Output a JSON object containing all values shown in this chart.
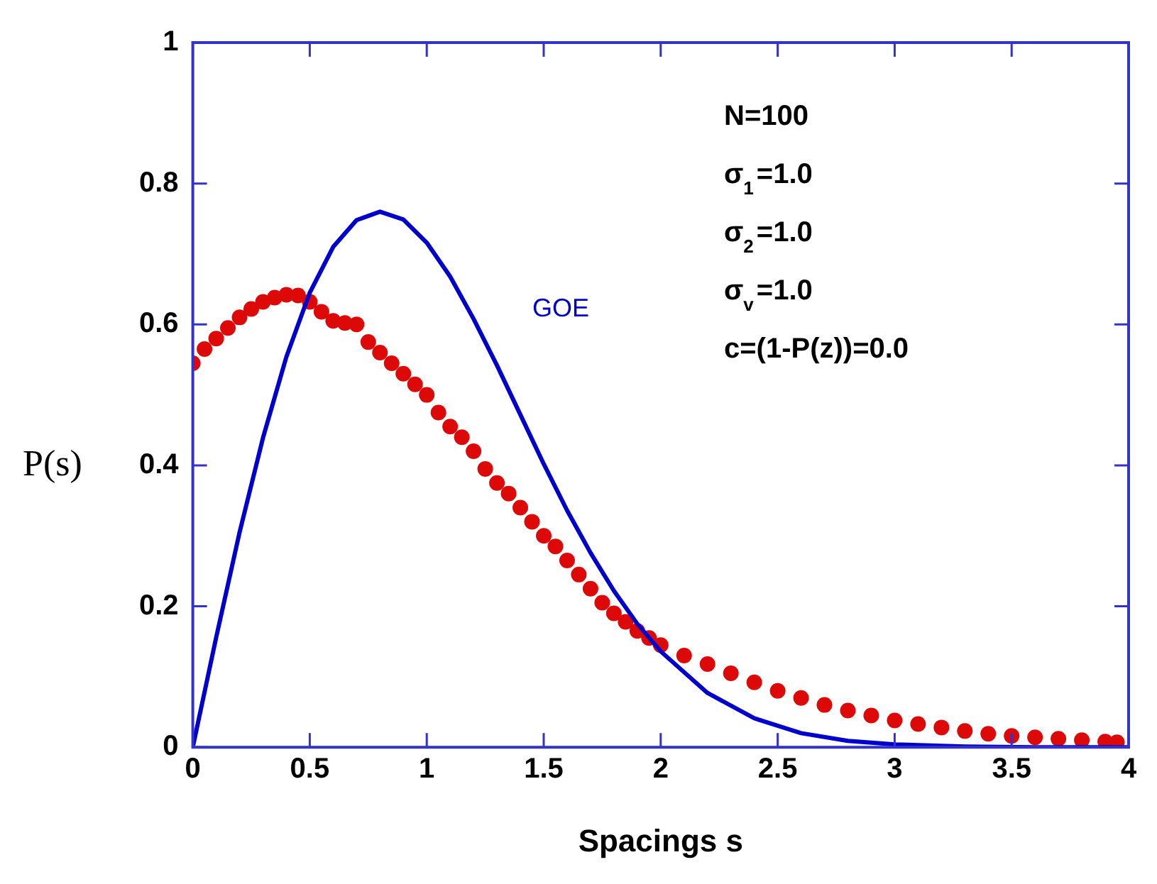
{
  "chart_data": {
    "type": "scatter",
    "xlabel": "Spacings s",
    "ylabel": "P(s)",
    "xlim": [
      0,
      4
    ],
    "ylim": [
      0,
      1
    ],
    "xticks": [
      0,
      0.5,
      1,
      1.5,
      2,
      2.5,
      3,
      3.5,
      4
    ],
    "yticks": [
      0,
      0.2,
      0.4,
      0.6,
      0.8,
      1
    ],
    "grid": false,
    "legend": false,
    "marker": "circle",
    "annotations": [
      "GOE",
      "N=100",
      "σ$_{1}$=1.0",
      "σ$_{2}$=1.0",
      "σ$_{v}$=1.0",
      "c=(1-P(z))=0.0"
    ],
    "series": [
      {
        "color": "#dd0808",
        "x": [
          0,
          0.05,
          0.1,
          0.15,
          0.2,
          0.25,
          0.3,
          0.35,
          0.4,
          0.45,
          0.5,
          0.55,
          0.6,
          0.65,
          0.7,
          0.75,
          0.8,
          0.85,
          0.9,
          0.95,
          1.0,
          1.05,
          1.1,
          1.15,
          1.2,
          1.25,
          1.3,
          1.35,
          1.4,
          1.45,
          1.5,
          1.55,
          1.6,
          1.65,
          1.7,
          1.75,
          1.8,
          1.85,
          1.9,
          1.95,
          2.0,
          2.1,
          2.2,
          2.3,
          2.4,
          2.5,
          2.6,
          2.7,
          2.8,
          2.9,
          3.0,
          3.1,
          3.2,
          3.3,
          3.4,
          3.5,
          3.6,
          3.7,
          3.8,
          3.9,
          3.95
        ],
        "values": [
          0.545,
          0.565,
          0.58,
          0.595,
          0.61,
          0.622,
          0.632,
          0.638,
          0.642,
          0.641,
          0.632,
          0.618,
          0.605,
          0.602,
          0.6,
          0.575,
          0.56,
          0.545,
          0.53,
          0.515,
          0.5,
          0.475,
          0.455,
          0.44,
          0.42,
          0.395,
          0.375,
          0.36,
          0.34,
          0.32,
          0.3,
          0.285,
          0.265,
          0.245,
          0.225,
          0.205,
          0.19,
          0.178,
          0.165,
          0.155,
          0.145,
          0.13,
          0.118,
          0.105,
          0.092,
          0.08,
          0.07,
          0.06,
          0.052,
          0.045,
          0.038,
          0.033,
          0.028,
          0.023,
          0.019,
          0.016,
          0.014,
          0.012,
          0.01,
          0.008,
          0.007
        ]
      },
      {
        "type": "line",
        "color": "#0000cc",
        "marker": "none",
        "line_style": "solid",
        "x": [
          0,
          0.1,
          0.2,
          0.3,
          0.4,
          0.5,
          0.6,
          0.7,
          0.8,
          0.9,
          1.0,
          1.1,
          1.2,
          1.3,
          1.4,
          1.5,
          1.6,
          1.7,
          1.8,
          1.9,
          2.0,
          2.2,
          2.4,
          2.6,
          2.8,
          3.0,
          3.3,
          3.6,
          4.0
        ],
        "values": [
          0,
          0.156,
          0.305,
          0.439,
          0.554,
          0.645,
          0.71,
          0.748,
          0.76,
          0.749,
          0.716,
          0.668,
          0.608,
          0.542,
          0.472,
          0.402,
          0.336,
          0.276,
          0.222,
          0.175,
          0.136,
          0.077,
          0.041,
          0.02,
          0.009,
          0.004,
          0.001,
          0,
          0
        ]
      }
    ]
  }
}
